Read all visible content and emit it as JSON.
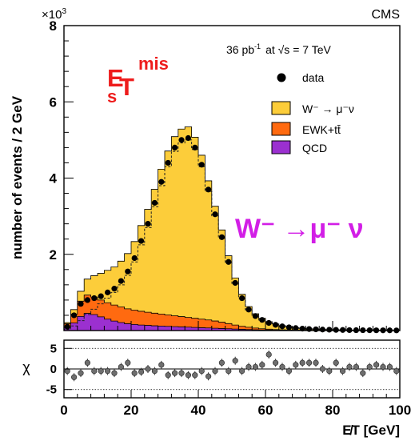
{
  "top_right_label": "CMS",
  "top_left_exponent": "×10",
  "top_left_exponent_sup": "3",
  "lumi_text": "36 pb",
  "lumi_sup": "-1",
  "energy_text": "at √s = 7 TeV",
  "overlay_metric_main": "E",
  "overlay_metric_sub": "s",
  "overlay_metric_T": "T",
  "overlay_metric_sup": "mis",
  "overlay_process": "W⁻ →μ⁻ ν",
  "colors": {
    "signal": "#fccd3a",
    "ewk": "#ff6a10",
    "qcd": "#9b30d0",
    "overlay_red": "#ee1c1c",
    "overlay_magenta": "#d21ee6"
  },
  "chart_data": [
    {
      "type": "area",
      "panel": "main",
      "xlabel": "E̸T [GeV]",
      "ylabel": "number of events / 2 GeV",
      "xlim": [
        0,
        100
      ],
      "ylim": [
        0,
        8000
      ],
      "x_ticks": [
        "0",
        "20",
        "40",
        "60",
        "80",
        "100"
      ],
      "y_ticks": [
        "2",
        "4",
        "6",
        "8"
      ],
      "legend_position": "top-right",
      "bin_edges": [
        0,
        2,
        4,
        6,
        8,
        10,
        12,
        14,
        16,
        18,
        20,
        22,
        24,
        26,
        28,
        30,
        32,
        34,
        36,
        38,
        40,
        42,
        44,
        46,
        48,
        50,
        52,
        54,
        56,
        58,
        60,
        62,
        64,
        66,
        68,
        70,
        72,
        74,
        76,
        78,
        80,
        82,
        84,
        86,
        88,
        90,
        92,
        94,
        96,
        98,
        100
      ],
      "series": [
        {
          "name": "data",
          "style": "points",
          "values": [
            100,
            400,
            700,
            800,
            850,
            900,
            1000,
            1100,
            1300,
            1550,
            1900,
            2350,
            2800,
            3350,
            3900,
            4400,
            4800,
            5000,
            5050,
            4800,
            4350,
            3700,
            3050,
            2450,
            1800,
            1250,
            850,
            550,
            380,
            280,
            200,
            150,
            110,
            85,
            65,
            50,
            40,
            32,
            26,
            22,
            18,
            15,
            12,
            10,
            9,
            8,
            7,
            6,
            5,
            4
          ]
        },
        {
          "name": "W⁻ → μ⁻ν",
          "style": "stack",
          "values": [
            30,
            120,
            260,
            420,
            560,
            700,
            850,
            1000,
            1200,
            1450,
            1800,
            2250,
            2700,
            3250,
            3800,
            4300,
            4700,
            4920,
            5000,
            4750,
            4300,
            3650,
            3010,
            2420,
            1780,
            1235,
            838,
            543,
            375,
            275,
            197,
            148,
            108,
            84,
            64,
            49,
            39,
            31,
            25,
            21,
            17,
            14,
            11,
            9,
            8,
            7,
            6,
            5,
            4,
            3
          ]
        },
        {
          "name": "EWK+tt̄",
          "style": "stack",
          "values": [
            100,
            230,
            400,
            480,
            460,
            440,
            430,
            420,
            410,
            390,
            375,
            360,
            345,
            330,
            315,
            300,
            285,
            270,
            255,
            240,
            225,
            210,
            190,
            165,
            135,
            105,
            80,
            60,
            44,
            32,
            23,
            17,
            13,
            10,
            8,
            6,
            5,
            4,
            3,
            2,
            2,
            2,
            1,
            1,
            1,
            1,
            1,
            1,
            1,
            1
          ]
        },
        {
          "name": "QCD",
          "style": "stack",
          "values": [
            80,
            200,
            370,
            450,
            420,
            360,
            300,
            250,
            210,
            180,
            160,
            145,
            135,
            125,
            118,
            110,
            103,
            96,
            89,
            82,
            75,
            68,
            61,
            54,
            47,
            40,
            33,
            27,
            21,
            16,
            12,
            9,
            7,
            5,
            4,
            3,
            2,
            2,
            1,
            1,
            1,
            1,
            1,
            1,
            1,
            1,
            1,
            1,
            1,
            1
          ]
        }
      ]
    },
    {
      "type": "scatter",
      "panel": "ratio",
      "xlabel": "E̸T [GeV]",
      "ylabel": "χ",
      "xlim": [
        0,
        100
      ],
      "ylim": [
        -7,
        7
      ],
      "y_ticks": [
        "5",
        "0",
        "-5"
      ],
      "x": [
        1,
        3,
        5,
        7,
        9,
        11,
        13,
        15,
        17,
        19,
        21,
        23,
        25,
        27,
        29,
        31,
        33,
        35,
        37,
        39,
        41,
        43,
        45,
        47,
        49,
        51,
        53,
        55,
        57,
        59,
        61,
        63,
        65,
        67,
        69,
        71,
        73,
        75,
        77,
        79,
        81,
        83,
        85,
        87,
        89,
        91,
        93,
        95,
        97,
        99
      ],
      "values": [
        -0.5,
        -2.0,
        -1.0,
        1.5,
        -0.5,
        -0.5,
        -0.5,
        -1.0,
        0.5,
        1.5,
        -1.0,
        -0.7,
        0.0,
        -0.5,
        1.0,
        -1.5,
        -1.0,
        -1.0,
        -1.5,
        -1.5,
        -0.5,
        -1.8,
        -0.5,
        1.5,
        -0.5,
        2.0,
        -0.5,
        0.5,
        0.5,
        1.0,
        3.5,
        1.5,
        0.5,
        -0.5,
        1.0,
        1.5,
        1.5,
        1.5,
        0.0,
        -0.5,
        1.5,
        -0.5,
        0.5,
        0.5,
        -1.0,
        0.5,
        1.0,
        0.5,
        0.5,
        -0.5
      ]
    }
  ]
}
